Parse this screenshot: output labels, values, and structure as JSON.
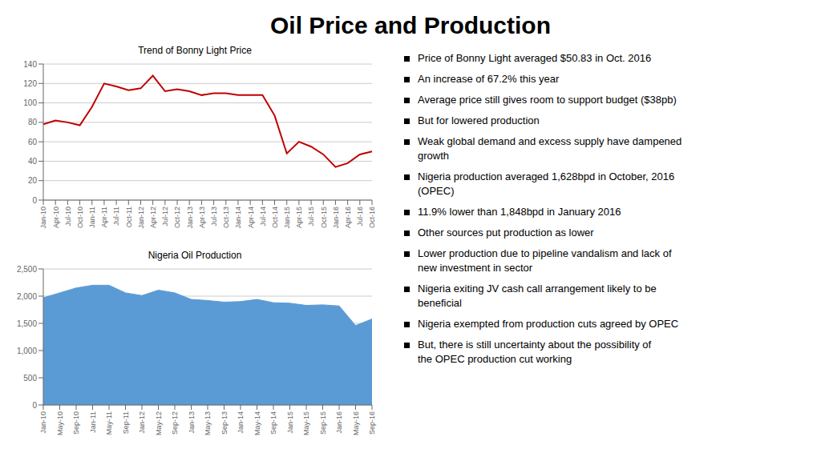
{
  "title": "Oil Price and Production",
  "chart_data": [
    {
      "type": "line",
      "title": "Trend of Bonny Light Price",
      "categories": [
        "Jan-10",
        "Apr-10",
        "Jul-10",
        "Oct-10",
        "Jan-11",
        "Apr-11",
        "Jul-11",
        "Oct-11",
        "Jan-12",
        "Apr-12",
        "Jul-12",
        "Oct-12",
        "Jan-13",
        "Apr-13",
        "Jul-13",
        "Oct-13",
        "Jan-14",
        "Apr-14",
        "Jul-14",
        "Oct-14",
        "Jan-15",
        "Apr-15",
        "Jul-15",
        "Oct-15",
        "Jan-16",
        "Apr-16",
        "Jul-16",
        "Oct-16"
      ],
      "values": [
        78,
        82,
        80,
        77,
        96,
        120,
        117,
        113,
        115,
        128,
        112,
        114,
        112,
        108,
        110,
        110,
        108,
        108,
        108,
        87,
        48,
        60,
        55,
        47,
        34,
        38,
        47,
        50
      ],
      "color": "#C00000",
      "ylim": [
        0,
        140
      ],
      "yticks": [
        0,
        20,
        40,
        60,
        80,
        100,
        120,
        140
      ],
      "grid": true
    },
    {
      "type": "area",
      "title": "Nigeria Oil Production",
      "categories": [
        "Jan-10",
        "May-10",
        "Sep-10",
        "Jan-11",
        "May-11",
        "Sep-11",
        "Jan-12",
        "May-12",
        "Sep-12",
        "Jan-13",
        "May-13",
        "Sep-13",
        "Jan-14",
        "May-14",
        "Sep-14",
        "Jan-15",
        "May-15",
        "Sep-15",
        "Jan-16",
        "May-16",
        "Sep-16"
      ],
      "values": [
        1970,
        2060,
        2150,
        2200,
        2200,
        2060,
        2010,
        2110,
        2060,
        1940,
        1920,
        1890,
        1900,
        1940,
        1880,
        1870,
        1830,
        1840,
        1820,
        1460,
        1580
      ],
      "color": "#5B9BD5",
      "ylim": [
        0,
        2500
      ],
      "yticks": [
        0,
        500,
        {
          "value": 1000,
          "label": "1,000"
        },
        {
          "value": 1500,
          "label": "1,500"
        },
        {
          "value": 2000,
          "label": "2,000"
        },
        {
          "value": 2500,
          "label": "2,500"
        }
      ],
      "grid": true
    }
  ],
  "annotations": [
    "Price of Bonny Light averaged $50.83 in Oct. 2016",
    "An increase of 67.2% this year",
    "Average price still gives room to support budget ($38pb)",
    "But for lowered production",
    "Weak global demand and excess supply have dampened\ngrowth",
    "Nigeria production averaged 1,628bpd in October, 2016\n(OPEC)",
    "11.9% lower than 1,848bpd in January 2016",
    "Other sources put production as lower",
    "Lower production due to pipeline vandalism and lack of\nnew investment in sector",
    "Nigeria exiting JV cash call arrangement likely to be\nbeneficial",
    "Nigeria exempted from production cuts agreed by OPEC",
    "But, there is still uncertainty about the possibility of\nthe OPEC production cut working"
  ]
}
